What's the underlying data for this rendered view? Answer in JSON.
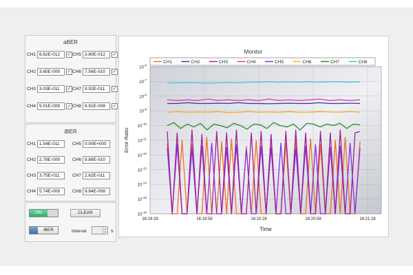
{
  "aber": {
    "title": "aBER",
    "channels": [
      {
        "label": "CH1",
        "value": "6.62E-012",
        "checked": true
      },
      {
        "label": "CH2",
        "value": "3.65E-009",
        "checked": true
      },
      {
        "label": "CH3",
        "value": "3.03E-011",
        "checked": true
      },
      {
        "label": "CH4",
        "value": "5.01E-009",
        "checked": true
      },
      {
        "label": "CH5",
        "value": "3.80E-012",
        "checked": true
      },
      {
        "label": "CH6",
        "value": "7.56E-010",
        "checked": true
      },
      {
        "label": "CH7",
        "value": "9.92E-011",
        "checked": true
      },
      {
        "label": "CH8",
        "value": "8.91E-008",
        "checked": true
      }
    ]
  },
  "iber": {
    "title": "iBER",
    "channels": [
      {
        "label": "CH1",
        "value": "1.54E-011"
      },
      {
        "label": "CH2",
        "value": "2.78E-009"
      },
      {
        "label": "CH3",
        "value": "3.75E-011"
      },
      {
        "label": "CH4",
        "value": "5.74E-009"
      },
      {
        "label": "CH5",
        "value": "0.00E+000"
      },
      {
        "label": "CH6",
        "value": "9.88E-010"
      },
      {
        "label": "CH7",
        "value": "2.62E-011"
      },
      {
        "label": "CH8",
        "value": "9.84E-008"
      }
    ]
  },
  "controls": {
    "on_label": "ON",
    "clear_label": "CLEAR",
    "mode_label": "iBER",
    "interval_label": "Interval",
    "interval_value": "",
    "interval_unit": "s"
  },
  "colors": {
    "CH1": "#f07020",
    "CH2": "#2c3a9e",
    "CH3": "#a0208c",
    "CH4": "#e23aa8",
    "CH5": "#8a2be2",
    "CH6": "#ffb020",
    "CH7": "#2a8a2a",
    "CH8": "#3ec6e8"
  },
  "chart_data": {
    "type": "line",
    "title": "Monitor",
    "xlabel": "Time",
    "ylabel": "Error Ratio",
    "y_scale": "log",
    "ylim_exponent": [
      -16,
      -6
    ],
    "x_ticks": [
      "16:19:28",
      "16:19:58",
      "16:20:28",
      "16:20:58",
      "16:21:28"
    ],
    "y_ticks": [
      {
        "base": "10",
        "exp": "-6"
      },
      {
        "base": "10",
        "exp": "-7"
      },
      {
        "base": "10",
        "exp": "-8"
      },
      {
        "base": "10",
        "exp": "-9"
      },
      {
        "base": "10",
        "exp": "-10"
      },
      {
        "base": "10",
        "exp": "-11"
      },
      {
        "base": "10",
        "exp": "-12"
      },
      {
        "base": "10",
        "exp": "-13"
      },
      {
        "base": "10",
        "exp": "-14"
      },
      {
        "base": "10",
        "exp": "-15"
      },
      {
        "base": "10",
        "exp": "-16"
      }
    ],
    "legend_position": "top",
    "series": [
      {
        "name": "CH1",
        "log10_values": [
          -11.2,
          -16,
          -16,
          -11.0,
          -16,
          -11.3,
          -16,
          -16,
          -10.8,
          -16,
          -16,
          -11.1,
          -16,
          -10.9,
          -16,
          -16,
          -11.4,
          -16,
          -11.0,
          -16,
          -16,
          -10.7,
          -16,
          -16,
          -11.2,
          -16,
          -11.0,
          -16,
          -16,
          -10.9,
          -16,
          -11.3,
          -16,
          -16,
          -11.0,
          -16,
          -10.8,
          -16,
          -16,
          -11.1
        ]
      },
      {
        "name": "CH2",
        "log10_values": [
          -8.5,
          -8.5,
          -8.45,
          -8.5,
          -8.5,
          -8.48,
          -8.5,
          -8.45,
          -8.5,
          -8.5,
          -8.52,
          -8.5,
          -8.48,
          -8.5,
          -8.5,
          -8.45,
          -8.5,
          -8.5,
          -8.48,
          -8.5
        ]
      },
      {
        "name": "CH3",
        "log10_values": [
          -10.4,
          -16,
          -10.5,
          -16,
          -16,
          -10.3,
          -16,
          -10.6,
          -16,
          -16,
          -10.4,
          -16,
          -10.5,
          -16,
          -10.3,
          -16,
          -16,
          -10.5,
          -16,
          -10.4,
          -16,
          -10.6,
          -16,
          -16,
          -10.4,
          -16,
          -10.3,
          -16,
          -10.5,
          -16,
          -16,
          -10.4,
          -16,
          -10.5,
          -16,
          -10.3,
          -16,
          -16,
          -10.5,
          -10.4
        ]
      },
      {
        "name": "CH4",
        "log10_values": [
          -8.25,
          -8.3,
          -8.25,
          -8.3,
          -8.2,
          -8.3,
          -8.25,
          -8.3,
          -8.25,
          -8.3,
          -8.2,
          -8.3,
          -8.25,
          -8.3,
          -8.25,
          -8.2,
          -8.3,
          -8.25,
          -8.3,
          -8.25
        ]
      },
      {
        "name": "CH5",
        "log10_values": [
          -11.5,
          -16,
          -11.3,
          -16,
          -16,
          -11.6,
          -16,
          -11.4,
          -16,
          -11.2,
          -16,
          -16,
          -11.5,
          -16,
          -11.3,
          -16,
          -11.6,
          -16,
          -16,
          -11.4,
          -16,
          -11.5,
          -16,
          -11.2,
          -16,
          -16,
          -11.6,
          -16,
          -11.4,
          -16,
          -11.3,
          -16,
          -16,
          -11.5,
          -16,
          -11.4,
          -16,
          -11.2,
          -16,
          -11.5
        ]
      },
      {
        "name": "CH6",
        "log10_values": [
          -9.1,
          -9.05,
          -9.1,
          -9.08,
          -9.1,
          -9.05,
          -9.12,
          -9.1,
          -9.05,
          -9.1,
          -9.08,
          -9.1,
          -9.05,
          -9.1,
          -9.1,
          -9.05,
          -9.08,
          -9.1,
          -9.05,
          -9.1
        ]
      },
      {
        "name": "CH7",
        "log10_values": [
          -10.0,
          -9.8,
          -10.2,
          -9.9,
          -10.1,
          -9.85,
          -10.3,
          -9.9,
          -10.0,
          -10.15,
          -9.85,
          -10.0,
          -10.25,
          -9.9,
          -9.95,
          -10.2,
          -9.8,
          -10.0,
          -10.1,
          -9.9,
          -10.3,
          -9.85,
          -9.9,
          -10.1,
          -9.9,
          -10.0,
          -9.85,
          -10.2,
          -9.9,
          -9.95
        ]
      },
      {
        "name": "CH8",
        "log10_values": [
          -7.1,
          -7.1,
          -7.08,
          -7.1,
          -7.12,
          -7.1,
          -7.08,
          -7.1,
          -7.05,
          -7.05,
          -7.02,
          -7.05,
          -7.03,
          -7.05,
          -7.02,
          -7.05,
          -7.03,
          -7.02,
          -7.05,
          -7.03
        ]
      }
    ]
  }
}
